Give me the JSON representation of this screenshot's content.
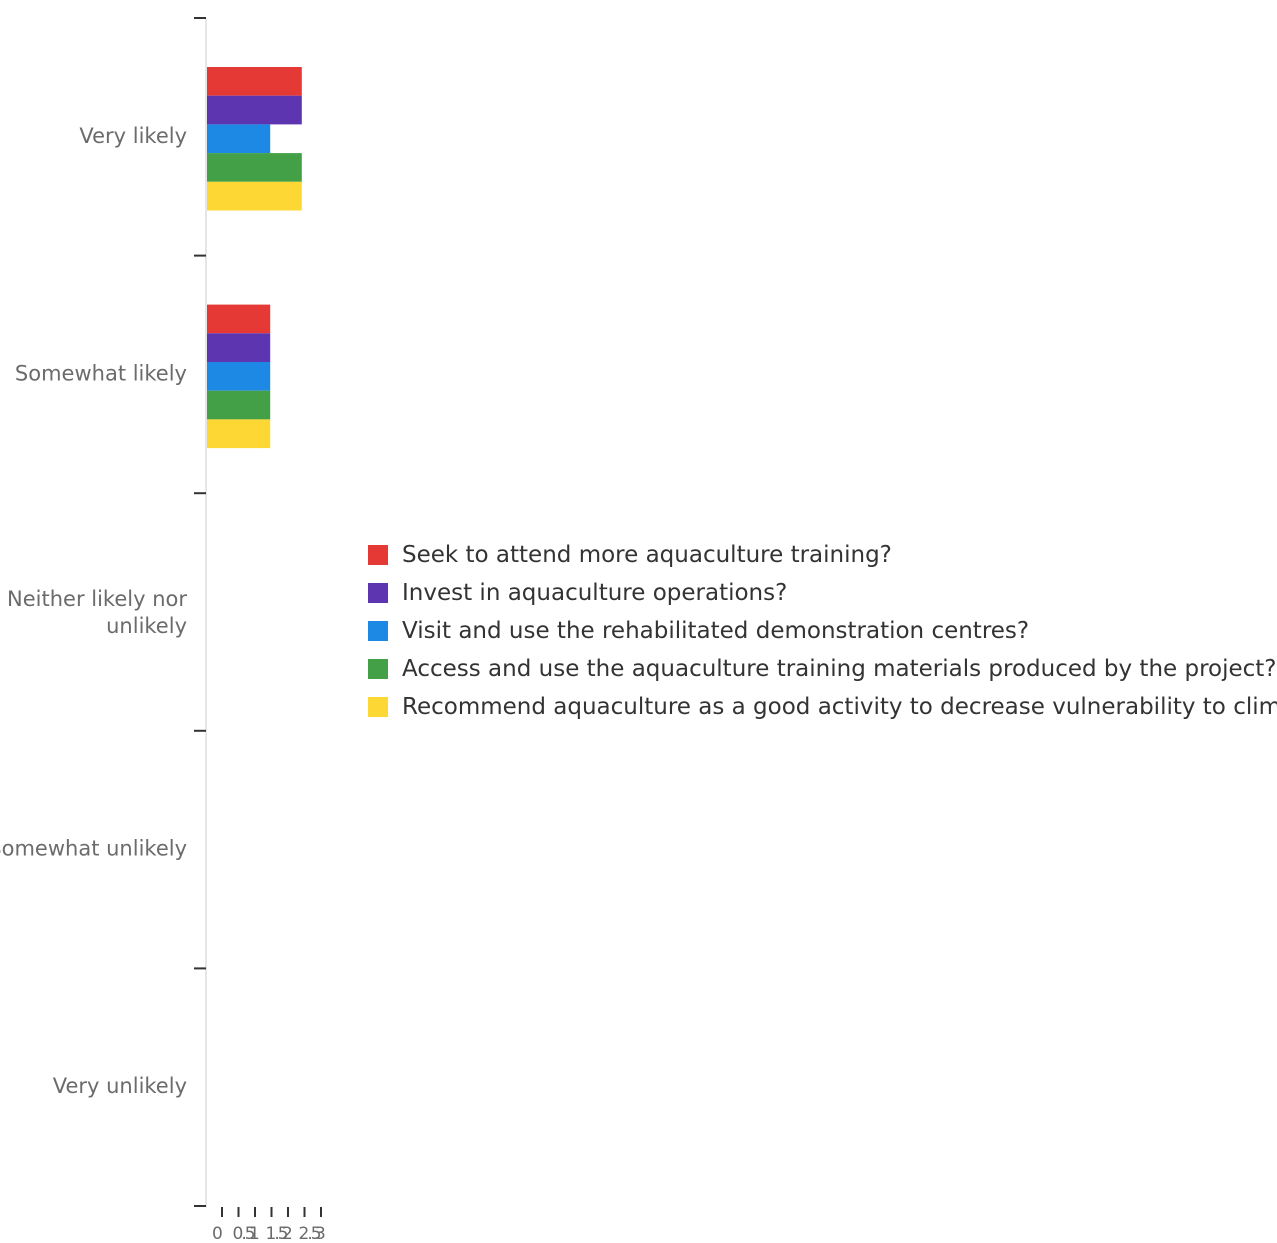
{
  "chart_data": {
    "type": "bar",
    "orientation": "horizontal",
    "categories": [
      "Very likely",
      "Somewhat likely",
      "Neither likely nor unlikely",
      "Somewhat unlikely",
      "Very unlikely"
    ],
    "series": [
      {
        "name": "Seek to attend more aquaculture training?",
        "color": "#e53935",
        "values": [
          3,
          2,
          0,
          0,
          0
        ]
      },
      {
        "name": "Invest in aquaculture operations?",
        "color": "#5e35b1",
        "values": [
          3,
          2,
          0,
          0,
          0
        ]
      },
      {
        "name": "Visit and use the rehabilitated demonstration centres?",
        "color": "#1e88e5",
        "values": [
          2,
          2,
          0,
          0,
          0
        ]
      },
      {
        "name": "Access and use the aquaculture training materials produced by the project?",
        "color": "#43a047",
        "values": [
          3,
          2,
          0,
          0,
          0
        ]
      },
      {
        "name": "Recommend aquaculture as a good activity to decrease vulnerability to clima...",
        "color": "#fdd835",
        "values": [
          3,
          2,
          0,
          0,
          0
        ]
      }
    ],
    "xticks": [
      "0",
      "0.5",
      "1",
      "1.5",
      "2",
      "2.5",
      "3"
    ],
    "xlim": [
      0,
      3
    ],
    "grid": false,
    "legend_position": "right"
  }
}
